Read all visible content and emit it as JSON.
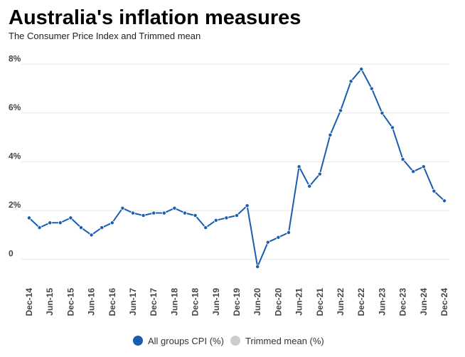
{
  "chart_data": {
    "type": "line",
    "title": "Australia's inflation measures",
    "subtitle": "The Consumer Price Index and Trimmed mean",
    "categories": [
      "Dec-14",
      null,
      "Jun-15",
      null,
      "Dec-15",
      null,
      "Jun-16",
      null,
      "Dec-16",
      null,
      "Jun-17",
      null,
      "Dec-17",
      null,
      "Jun-18",
      null,
      "Dec-18",
      null,
      "Jun-19",
      null,
      "Dec-19",
      null,
      "Jun-20",
      null,
      "Dec-20",
      null,
      "Jun-21",
      null,
      "Dec-21",
      null,
      "Jun-22",
      null,
      "Dec-22",
      null,
      "Jun-23",
      null,
      "Dec-23",
      null,
      "Jun-24",
      null,
      "Dec-24"
    ],
    "series": [
      {
        "name": "All groups CPI (%)",
        "color": "#1a5cb0",
        "visible": true,
        "values": [
          1.7,
          1.3,
          1.5,
          1.5,
          1.7,
          1.3,
          1.0,
          1.3,
          1.5,
          2.1,
          1.9,
          1.8,
          1.9,
          1.9,
          2.1,
          1.9,
          1.8,
          1.3,
          1.6,
          1.7,
          1.8,
          2.2,
          -0.3,
          0.7,
          0.9,
          1.1,
          3.8,
          3.0,
          3.5,
          5.1,
          6.1,
          7.3,
          7.8,
          7.0,
          6.0,
          5.4,
          4.1,
          3.6,
          3.8,
          2.8,
          2.4
        ]
      },
      {
        "name": "Trimmed mean (%)",
        "color": "#cccccc",
        "visible": false,
        "values": [
          null,
          null,
          null,
          null,
          null,
          null,
          null,
          null,
          null,
          null,
          null,
          null,
          null,
          null,
          null,
          null,
          null,
          null,
          null,
          null,
          null,
          null,
          null,
          null,
          null,
          null,
          null,
          null,
          null,
          null,
          null,
          null,
          null,
          null,
          null,
          null,
          null,
          null,
          null,
          null,
          null
        ]
      }
    ],
    "ylim": [
      -1,
      8.3
    ],
    "yticks": [
      0,
      {
        "value": 2,
        "label": "2%"
      },
      {
        "value": 4,
        "label": "4%"
      },
      {
        "value": 6,
        "label": "6%"
      },
      {
        "value": 8,
        "label": "8%"
      }
    ],
    "grid": true,
    "legend": "bottom"
  }
}
